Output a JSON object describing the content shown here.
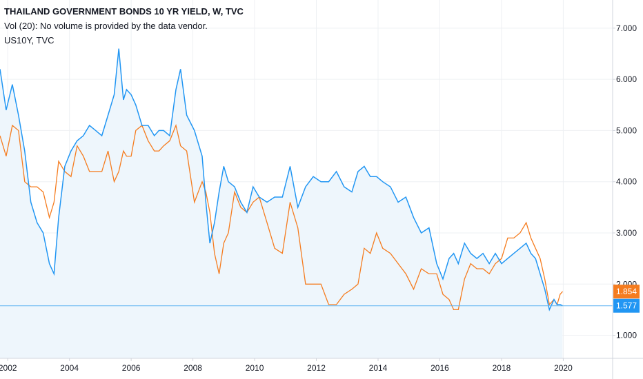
{
  "legend": {
    "title": "THAILAND GOVERNMENT BONDS 10 YR YIELD, W, TVC",
    "volume": "Vol (20): No volume is provided by the data vendor.",
    "compare": "US10Y, TVC"
  },
  "colors": {
    "thai": "#2196f3",
    "us": "#f57c1f",
    "area": "#eef6fc",
    "grid": "#eef0f3",
    "axis_line": "#d1d4dc",
    "price_line": "#5fb4f2"
  },
  "chart_data": {
    "type": "line",
    "ylim": [
      0.55,
      7.55
    ],
    "xlim": [
      2001.75,
      2021.6
    ],
    "y_ticks": [
      "1.000",
      "2.000",
      "3.000",
      "4.000",
      "5.000",
      "6.000",
      "7.000"
    ],
    "x_ticks": [
      "2002",
      "2004",
      "2006",
      "2008",
      "2010",
      "2012",
      "2014",
      "2016",
      "2018",
      "2020"
    ],
    "series": [
      {
        "name": "THAILAND GOVERNMENT BONDS 10 YR YIELD",
        "x": [
          2001.75,
          2001.95,
          2002.15,
          2002.35,
          2002.55,
          2002.75,
          2002.95,
          2003.15,
          2003.35,
          2003.5,
          2003.65,
          2003.85,
          2004.05,
          2004.25,
          2004.45,
          2004.65,
          2004.85,
          2005.05,
          2005.25,
          2005.45,
          2005.6,
          2005.75,
          2005.85,
          2006.0,
          2006.15,
          2006.35,
          2006.55,
          2006.75,
          2006.9,
          2007.05,
          2007.25,
          2007.45,
          2007.6,
          2007.8,
          2008.05,
          2008.3,
          2008.42,
          2008.55,
          2008.7,
          2008.85,
          2009.0,
          2009.15,
          2009.35,
          2009.55,
          2009.75,
          2009.95,
          2010.15,
          2010.4,
          2010.65,
          2010.9,
          2011.15,
          2011.4,
          2011.65,
          2011.9,
          2012.15,
          2012.4,
          2012.65,
          2012.9,
          2013.15,
          2013.35,
          2013.55,
          2013.75,
          2013.95,
          2014.15,
          2014.4,
          2014.65,
          2014.9,
          2015.15,
          2015.4,
          2015.65,
          2015.9,
          2016.1,
          2016.3,
          2016.45,
          2016.6,
          2016.8,
          2017.0,
          2017.2,
          2017.4,
          2017.6,
          2017.8,
          2018.0,
          2018.2,
          2018.4,
          2018.6,
          2018.8,
          2018.95,
          2019.1,
          2019.25,
          2019.4,
          2019.55,
          2019.7,
          2019.8,
          2019.9,
          2019.98
        ],
        "y": [
          6.2,
          5.4,
          5.9,
          5.3,
          4.6,
          3.6,
          3.2,
          3.0,
          2.4,
          2.2,
          3.3,
          4.3,
          4.6,
          4.8,
          4.9,
          5.1,
          5.0,
          4.9,
          5.3,
          5.7,
          6.6,
          5.6,
          5.8,
          5.7,
          5.5,
          5.1,
          5.1,
          4.9,
          5.0,
          5.0,
          4.9,
          5.8,
          6.2,
          5.3,
          5.0,
          4.5,
          3.6,
          2.8,
          3.2,
          3.8,
          4.3,
          4.0,
          3.9,
          3.6,
          3.4,
          3.9,
          3.7,
          3.6,
          3.7,
          3.7,
          4.3,
          3.5,
          3.9,
          4.1,
          4.0,
          4.0,
          4.2,
          3.9,
          3.8,
          4.2,
          4.3,
          4.1,
          4.1,
          4.0,
          3.9,
          3.6,
          3.7,
          3.3,
          3.0,
          3.1,
          2.4,
          2.1,
          2.5,
          2.6,
          2.4,
          2.8,
          2.6,
          2.5,
          2.6,
          2.4,
          2.6,
          2.4,
          2.5,
          2.6,
          2.7,
          2.8,
          2.6,
          2.5,
          2.2,
          1.9,
          1.5,
          1.7,
          1.6,
          1.6,
          1.577
        ]
      },
      {
        "name": "US10Y",
        "x": [
          2001.75,
          2001.95,
          2002.15,
          2002.35,
          2002.55,
          2002.75,
          2002.95,
          2003.15,
          2003.35,
          2003.5,
          2003.65,
          2003.85,
          2004.05,
          2004.25,
          2004.45,
          2004.65,
          2004.85,
          2005.05,
          2005.25,
          2005.45,
          2005.6,
          2005.75,
          2005.85,
          2006.0,
          2006.15,
          2006.35,
          2006.55,
          2006.75,
          2006.9,
          2007.05,
          2007.25,
          2007.45,
          2007.6,
          2007.8,
          2008.05,
          2008.3,
          2008.42,
          2008.55,
          2008.7,
          2008.85,
          2009.0,
          2009.15,
          2009.35,
          2009.55,
          2009.75,
          2009.95,
          2010.15,
          2010.4,
          2010.65,
          2010.9,
          2011.15,
          2011.4,
          2011.65,
          2011.9,
          2012.15,
          2012.4,
          2012.65,
          2012.9,
          2013.15,
          2013.35,
          2013.55,
          2013.75,
          2013.95,
          2014.15,
          2014.4,
          2014.65,
          2014.9,
          2015.15,
          2015.4,
          2015.65,
          2015.9,
          2016.1,
          2016.3,
          2016.45,
          2016.6,
          2016.8,
          2017.0,
          2017.2,
          2017.4,
          2017.6,
          2017.8,
          2018.0,
          2018.2,
          2018.4,
          2018.6,
          2018.8,
          2018.95,
          2019.1,
          2019.25,
          2019.4,
          2019.55,
          2019.7,
          2019.8,
          2019.9,
          2019.98
        ],
        "y": [
          4.9,
          4.5,
          5.1,
          5.0,
          4.0,
          3.9,
          3.9,
          3.8,
          3.3,
          3.6,
          4.4,
          4.2,
          4.1,
          4.7,
          4.5,
          4.2,
          4.2,
          4.2,
          4.6,
          4.0,
          4.2,
          4.6,
          4.5,
          4.5,
          5.0,
          5.1,
          4.8,
          4.6,
          4.6,
          4.7,
          4.8,
          5.1,
          4.7,
          4.6,
          3.6,
          4.0,
          3.8,
          3.4,
          2.6,
          2.2,
          2.8,
          3.0,
          3.8,
          3.5,
          3.4,
          3.6,
          3.7,
          3.2,
          2.7,
          2.6,
          3.6,
          3.1,
          2.0,
          2.0,
          2.0,
          1.6,
          1.6,
          1.8,
          1.9,
          2.0,
          2.7,
          2.6,
          3.0,
          2.7,
          2.6,
          2.4,
          2.2,
          1.9,
          2.3,
          2.2,
          2.2,
          1.8,
          1.7,
          1.5,
          1.5,
          2.1,
          2.4,
          2.3,
          2.3,
          2.2,
          2.4,
          2.5,
          2.9,
          2.9,
          3.0,
          3.2,
          2.9,
          2.7,
          2.5,
          2.1,
          1.6,
          1.7,
          1.6,
          1.8,
          1.854
        ]
      }
    ],
    "last_values": {
      "thai": "1.577",
      "us": "1.854"
    }
  }
}
